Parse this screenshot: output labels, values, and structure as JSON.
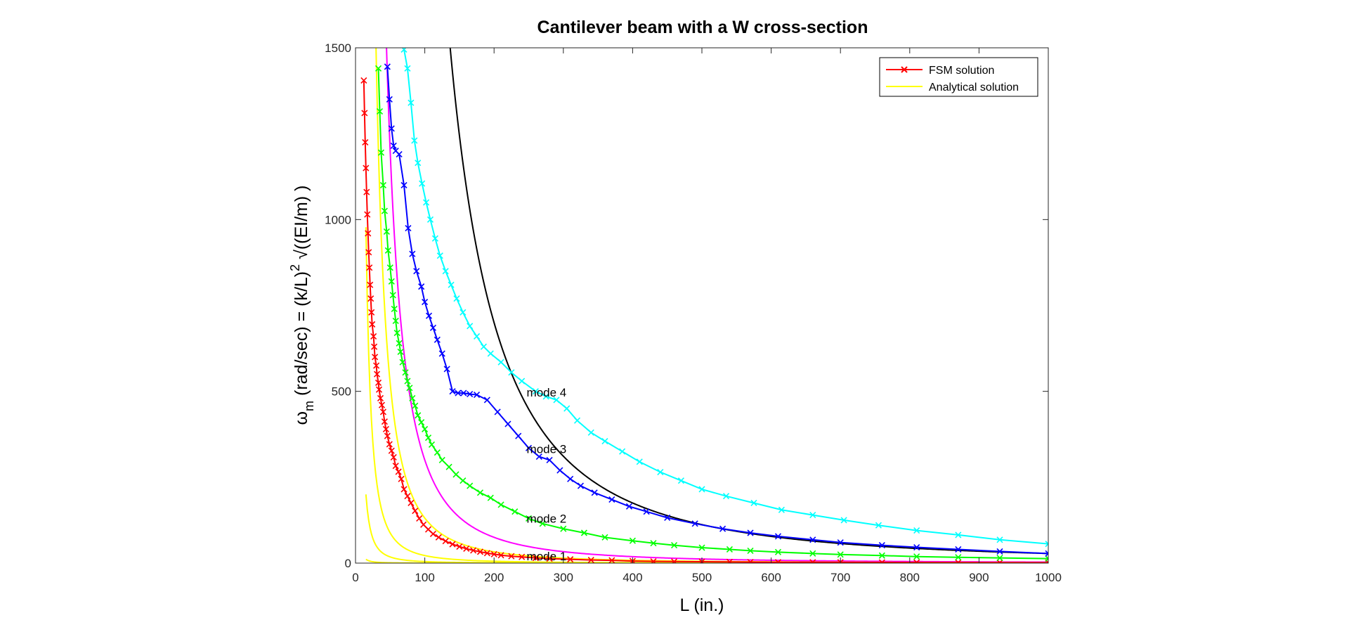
{
  "chart_data": {
    "type": "line",
    "title": "Cantilever beam with a W cross-section",
    "xlabel": "L (in.)",
    "ylabel": {
      "omega": "ω",
      "sub": "m",
      "mid": " (rad/sec) = (k/L)",
      "sup": "2",
      "tail": " √((EI/m) )"
    },
    "xlim": [
      0,
      1000
    ],
    "ylim": [
      0,
      1500
    ],
    "xticks": [
      0,
      100,
      200,
      300,
      400,
      500,
      600,
      700,
      800,
      900,
      1000
    ],
    "yticks": [
      0,
      500,
      1000,
      1500
    ],
    "grid": false,
    "legend": {
      "position": "top-right",
      "entries": [
        {
          "label": "FSM solution",
          "color": "#ff0000",
          "marker": "x"
        },
        {
          "label": "Analytical solution",
          "color": "#ffff00",
          "marker": "none"
        }
      ]
    },
    "analytical_constants": {
      "mode1": 2500,
      "mode2": 45000,
      "mode3": 220000,
      "mode4": 1310000
    },
    "series": [
      {
        "name": "FSM mode 1",
        "color": "#ff0000",
        "marker": "x",
        "points": [
          [
            12,
            1405
          ],
          [
            13,
            1310
          ],
          [
            14,
            1225
          ],
          [
            15,
            1150
          ],
          [
            16,
            1080
          ],
          [
            17,
            1015
          ],
          [
            18,
            960
          ],
          [
            19,
            905
          ],
          [
            20,
            860
          ],
          [
            21,
            810
          ],
          [
            22,
            770
          ],
          [
            23,
            730
          ],
          [
            24,
            695
          ],
          [
            26,
            660
          ],
          [
            27,
            630
          ],
          [
            28,
            600
          ],
          [
            30,
            575
          ],
          [
            31,
            550
          ],
          [
            33,
            525
          ],
          [
            34,
            505
          ],
          [
            36,
            480
          ],
          [
            38,
            460
          ],
          [
            40,
            440
          ],
          [
            42,
            412
          ],
          [
            44,
            390
          ],
          [
            46,
            370
          ],
          [
            49,
            346
          ],
          [
            52,
            327
          ],
          [
            55,
            308
          ],
          [
            58,
            283
          ],
          [
            62,
            266
          ],
          [
            66,
            245
          ],
          [
            70,
            215
          ],
          [
            75,
            195
          ],
          [
            80,
            175
          ],
          [
            86,
            152
          ],
          [
            92,
            130
          ],
          [
            98,
            112
          ],
          [
            105,
            98
          ],
          [
            112,
            85
          ],
          [
            120,
            75
          ],
          [
            130,
            64
          ],
          [
            140,
            55
          ],
          [
            150,
            48
          ],
          [
            160,
            42
          ],
          [
            170,
            37
          ],
          [
            180,
            33
          ],
          [
            190,
            29
          ],
          [
            200,
            26
          ],
          [
            210,
            23
          ],
          [
            225,
            20
          ],
          [
            240,
            18
          ],
          [
            260,
            15
          ],
          [
            280,
            13
          ],
          [
            310,
            11
          ],
          [
            340,
            9
          ],
          [
            370,
            8
          ],
          [
            400,
            6
          ],
          [
            430,
            5
          ],
          [
            460,
            4.5
          ],
          [
            500,
            4
          ],
          [
            540,
            3.5
          ],
          [
            570,
            3
          ],
          [
            610,
            2.7
          ],
          [
            660,
            2.5
          ],
          [
            700,
            2.3
          ],
          [
            760,
            2
          ],
          [
            810,
            1.8
          ],
          [
            870,
            1.6
          ],
          [
            930,
            1.4
          ],
          [
            1000,
            1.3
          ]
        ]
      },
      {
        "name": "FSM mode 2",
        "color": "#00ff00",
        "marker": "x",
        "points": [
          [
            33,
            1440
          ],
          [
            35,
            1315
          ],
          [
            37,
            1195
          ],
          [
            40,
            1100
          ],
          [
            42,
            1025
          ],
          [
            45,
            965
          ],
          [
            47,
            910
          ],
          [
            50,
            860
          ],
          [
            52,
            820
          ],
          [
            54,
            780
          ],
          [
            56,
            740
          ],
          [
            58,
            705
          ],
          [
            60,
            670
          ],
          [
            63,
            640
          ],
          [
            65,
            615
          ],
          [
            68,
            585
          ],
          [
            72,
            555
          ],
          [
            75,
            530
          ],
          [
            78,
            510
          ],
          [
            82,
            480
          ],
          [
            86,
            458
          ],
          [
            90,
            430
          ],
          [
            95,
            410
          ],
          [
            100,
            390
          ],
          [
            105,
            365
          ],
          [
            110,
            345
          ],
          [
            118,
            322
          ],
          [
            125,
            300
          ],
          [
            135,
            280
          ],
          [
            145,
            258
          ],
          [
            155,
            240
          ],
          [
            165,
            225
          ],
          [
            180,
            205
          ],
          [
            195,
            190
          ],
          [
            210,
            170
          ],
          [
            230,
            150
          ],
          [
            250,
            130
          ],
          [
            270,
            115
          ],
          [
            300,
            100
          ],
          [
            330,
            88
          ],
          [
            360,
            75
          ],
          [
            400,
            65
          ],
          [
            430,
            58
          ],
          [
            460,
            52
          ],
          [
            500,
            45
          ],
          [
            540,
            40
          ],
          [
            570,
            36
          ],
          [
            610,
            32
          ],
          [
            660,
            28
          ],
          [
            700,
            25
          ],
          [
            760,
            22
          ],
          [
            810,
            19
          ],
          [
            870,
            17
          ],
          [
            930,
            15
          ],
          [
            1000,
            13
          ]
        ]
      },
      {
        "name": "FSM mode 3",
        "color": "#0000ff",
        "marker": "x",
        "points": [
          [
            46,
            1445
          ],
          [
            49,
            1350
          ],
          [
            52,
            1265
          ],
          [
            55,
            1215
          ],
          [
            58,
            1200
          ],
          [
            63,
            1190
          ],
          [
            70,
            1100
          ],
          [
            76,
            975
          ],
          [
            82,
            900
          ],
          [
            88,
            850
          ],
          [
            95,
            805
          ],
          [
            100,
            760
          ],
          [
            106,
            720
          ],
          [
            112,
            685
          ],
          [
            118,
            650
          ],
          [
            125,
            610
          ],
          [
            132,
            565
          ],
          [
            140,
            500
          ],
          [
            148,
            495
          ],
          [
            156,
            495
          ],
          [
            165,
            492
          ],
          [
            175,
            490
          ],
          [
            190,
            475
          ],
          [
            205,
            440
          ],
          [
            220,
            405
          ],
          [
            235,
            370
          ],
          [
            250,
            335
          ],
          [
            265,
            310
          ],
          [
            280,
            300
          ],
          [
            295,
            270
          ],
          [
            310,
            245
          ],
          [
            325,
            225
          ],
          [
            345,
            205
          ],
          [
            370,
            185
          ],
          [
            395,
            165
          ],
          [
            420,
            150
          ],
          [
            450,
            132
          ],
          [
            490,
            115
          ],
          [
            530,
            100
          ],
          [
            570,
            88
          ],
          [
            610,
            78
          ],
          [
            660,
            68
          ],
          [
            700,
            60
          ],
          [
            760,
            52
          ],
          [
            810,
            46
          ],
          [
            870,
            40
          ],
          [
            930,
            34
          ],
          [
            1000,
            28
          ]
        ]
      },
      {
        "name": "FSM mode 4",
        "color": "#00ffff",
        "marker": "x",
        "points": [
          [
            70,
            1495
          ],
          [
            75,
            1440
          ],
          [
            80,
            1340
          ],
          [
            85,
            1230
          ],
          [
            90,
            1165
          ],
          [
            96,
            1105
          ],
          [
            102,
            1050
          ],
          [
            108,
            1000
          ],
          [
            115,
            945
          ],
          [
            122,
            895
          ],
          [
            130,
            850
          ],
          [
            138,
            810
          ],
          [
            146,
            770
          ],
          [
            155,
            730
          ],
          [
            165,
            690
          ],
          [
            175,
            660
          ],
          [
            185,
            630
          ],
          [
            195,
            610
          ],
          [
            210,
            585
          ],
          [
            225,
            555
          ],
          [
            240,
            530
          ],
          [
            260,
            500
          ],
          [
            275,
            485
          ],
          [
            290,
            475
          ],
          [
            305,
            450
          ],
          [
            320,
            415
          ],
          [
            340,
            380
          ],
          [
            360,
            355
          ],
          [
            385,
            325
          ],
          [
            410,
            295
          ],
          [
            440,
            265
          ],
          [
            470,
            240
          ],
          [
            500,
            215
          ],
          [
            535,
            195
          ],
          [
            575,
            175
          ],
          [
            615,
            155
          ],
          [
            660,
            140
          ],
          [
            705,
            125
          ],
          [
            755,
            110
          ],
          [
            810,
            95
          ],
          [
            870,
            82
          ],
          [
            930,
            68
          ],
          [
            1000,
            56
          ]
        ]
      }
    ],
    "analytical_series": [
      {
        "name": "Analytical mode 1",
        "color": "#ffff00"
      },
      {
        "name": "Analytical mode 2",
        "color": "#ffff00"
      },
      {
        "name": "Analytical mode 3",
        "color": "#ffff00"
      },
      {
        "name": "Analytical mode 4",
        "color": "#ffff00"
      }
    ],
    "extra_curves": [
      {
        "name": "magenta curve",
        "color": "#ff00ff",
        "constant": 3000000,
        "exponent": 2
      },
      {
        "name": "black curve",
        "color": "#000000",
        "constant": 28000000.0,
        "exponent": 2
      }
    ],
    "annotations": [
      {
        "text": "mode 4",
        "x": 247,
        "y": 497
      },
      {
        "text": "mode 3",
        "x": 247,
        "y": 333
      },
      {
        "text": "mode 2",
        "x": 247,
        "y": 130
      },
      {
        "text": "mode 1",
        "x": 247,
        "y": 20
      }
    ]
  }
}
